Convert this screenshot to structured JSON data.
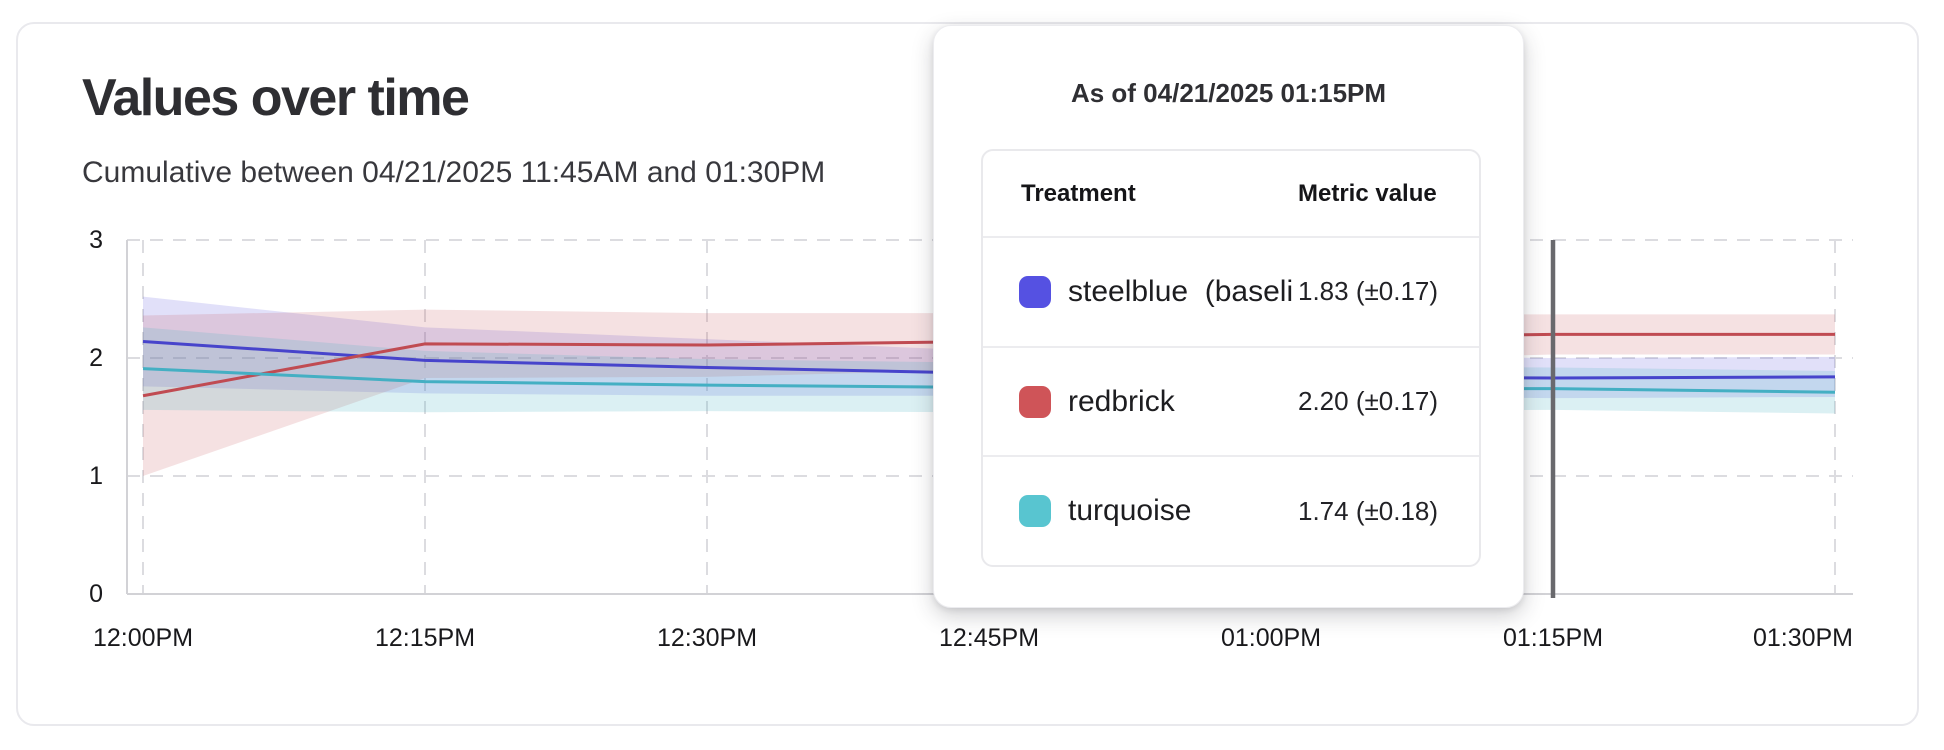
{
  "card": {
    "title": "Values over time",
    "subtitle": "Cumulative between 04/21/2025 11:45AM and 01:30PM"
  },
  "tooltip": {
    "title": "As of 04/21/2025 01:15PM",
    "col_treatment": "Treatment",
    "col_metric": "Metric value",
    "rows": [
      {
        "swatch": "#5551E2",
        "label": "steelblue  (baseli",
        "value": "1.83 (±0.17)"
      },
      {
        "swatch": "#CF5458",
        "label": "redbrick",
        "value": "2.20 (±0.17)"
      },
      {
        "swatch": "#58C5D0",
        "label": "turquoise",
        "value": "1.74 (±0.18)"
      }
    ]
  },
  "chart_data": {
    "type": "line",
    "title": "Values over time",
    "subtitle": "Cumulative between 04/21/2025 11:45AM and 01:30PM",
    "x_tick_labels": [
      "12:00PM",
      "12:15PM",
      "12:30PM",
      "12:45PM",
      "01:00PM",
      "01:15PM",
      "01:30PM"
    ],
    "y_tick_labels": [
      "0",
      "1",
      "2",
      "3"
    ],
    "ylim": [
      0,
      3
    ],
    "grid": true,
    "legend_position": "tooltip",
    "hover": {
      "x_label": "01:15PM",
      "x_index": 5,
      "line_color": "#69696d"
    },
    "series": [
      {
        "name": "steelblue (baseline)",
        "color": "#4744CB",
        "band_color": "rgba(86,82,224,0.18)",
        "values": [
          2.14,
          1.98,
          1.92,
          1.87,
          1.85,
          1.83,
          1.84
        ],
        "hi": [
          2.52,
          2.26,
          2.16,
          2.06,
          2.02,
          2.0,
          2.01
        ],
        "lo": [
          1.76,
          1.7,
          1.68,
          1.68,
          1.68,
          1.66,
          1.67
        ]
      },
      {
        "name": "redbrick",
        "color": "#C04B52",
        "band_color": "rgba(195,77,85,0.17)",
        "values": [
          1.68,
          2.12,
          2.11,
          2.14,
          2.17,
          2.2,
          2.2
        ],
        "hi": [
          2.36,
          2.41,
          2.38,
          2.38,
          2.37,
          2.37,
          2.37
        ],
        "lo": [
          1.0,
          1.83,
          1.84,
          1.9,
          1.97,
          2.03,
          2.03
        ]
      },
      {
        "name": "turquoise",
        "color": "#44AFC3",
        "band_color": "rgba(77,182,196,0.20)",
        "values": [
          1.91,
          1.8,
          1.77,
          1.75,
          1.74,
          1.74,
          1.71
        ],
        "hi": [
          2.26,
          2.06,
          1.99,
          1.96,
          1.93,
          1.92,
          1.89
        ],
        "lo": [
          1.56,
          1.54,
          1.55,
          1.54,
          1.55,
          1.56,
          1.53
        ]
      }
    ]
  }
}
